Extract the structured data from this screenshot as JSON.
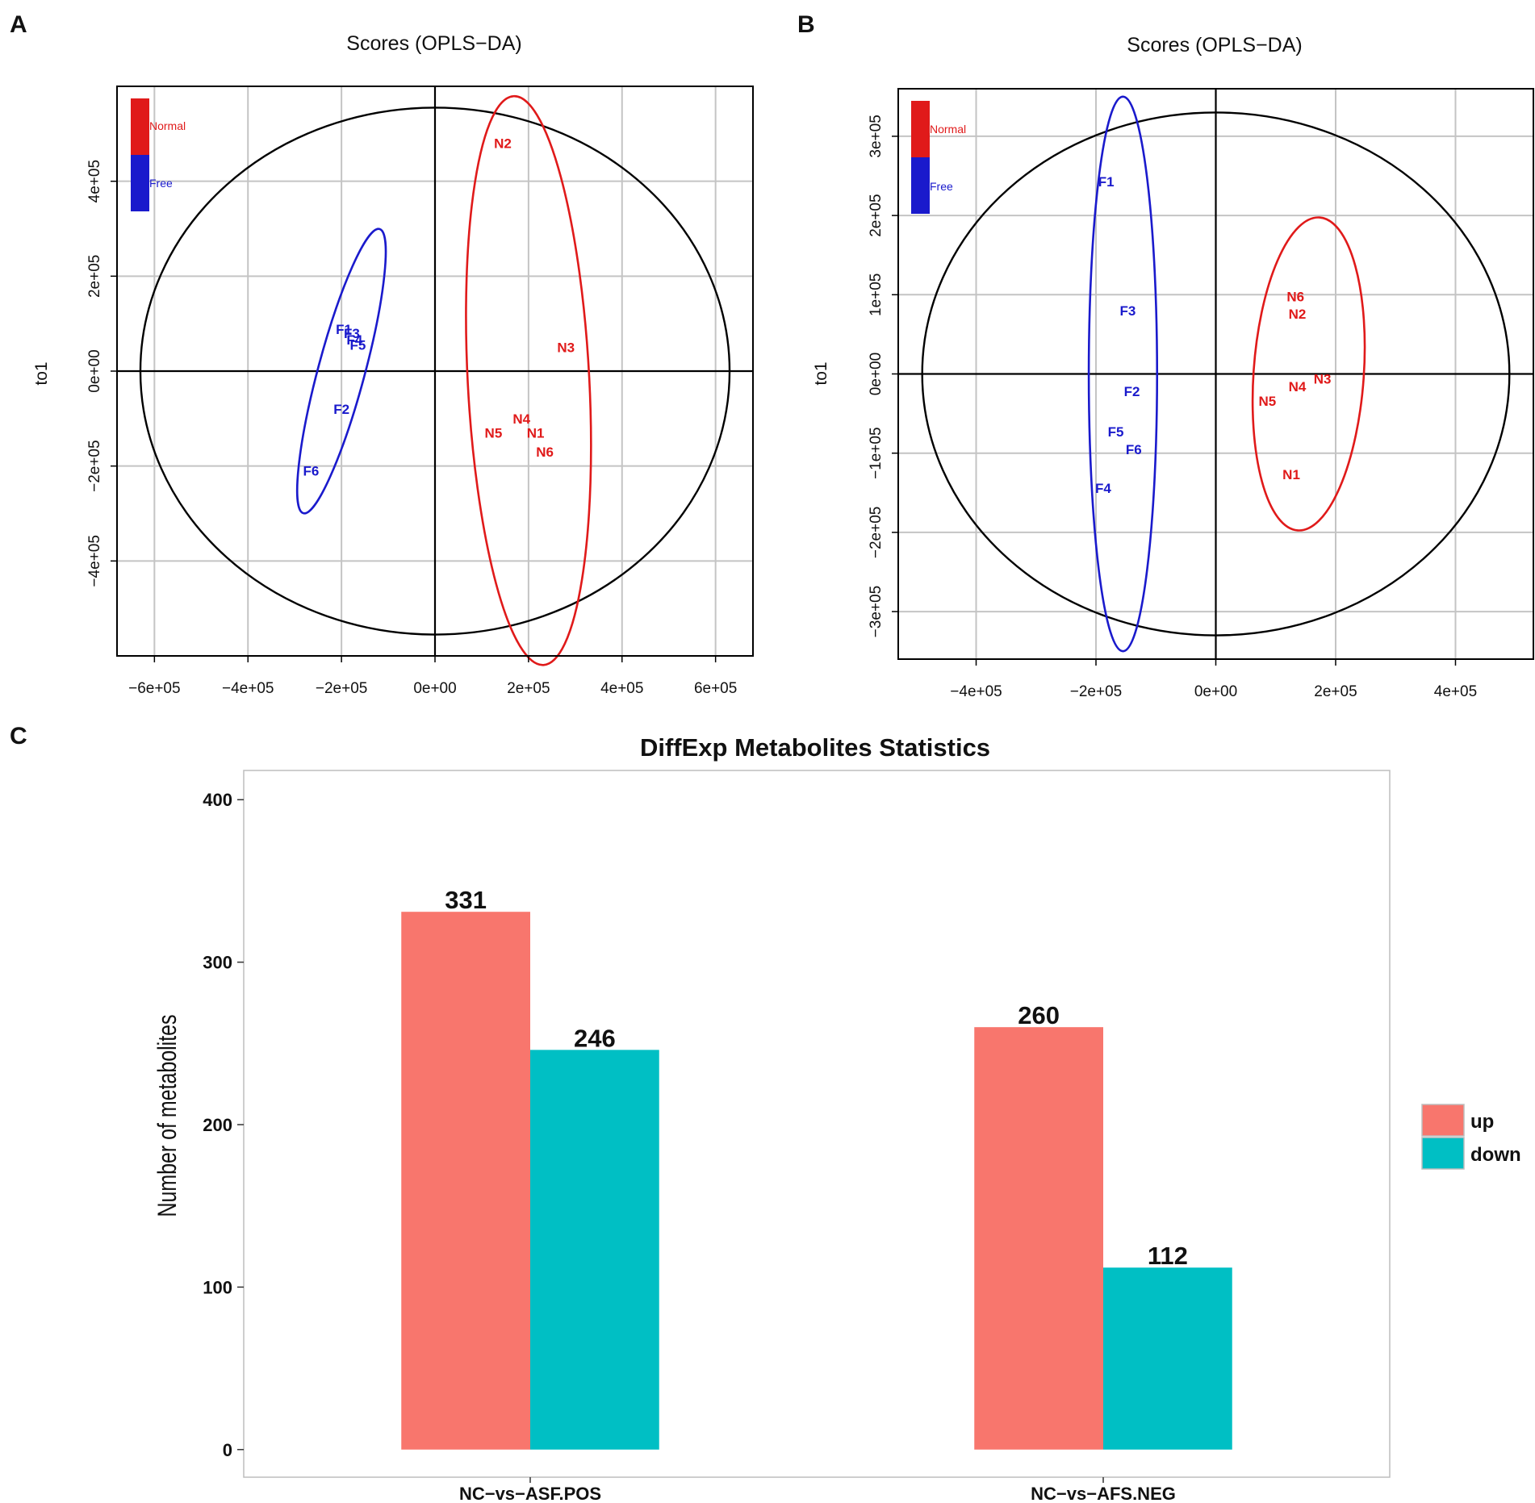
{
  "panels": [
    "A",
    "B",
    "C"
  ],
  "colors": {
    "normal": "#e01a1a",
    "free": "#1a1acc",
    "up": "#f8766d",
    "down": "#00bfc4"
  },
  "scores": [
    {
      "letter": "A",
      "title": "Scores (OPLS−DA)",
      "ylabel": "to1",
      "xlim": [
        -680000,
        680000
      ],
      "ylim": [
        -600000,
        600000
      ],
      "xticks": [
        -600000,
        -400000,
        -200000,
        0,
        200000,
        400000,
        600000
      ],
      "xtick_labels": [
        "−6e+05",
        "−4e+05",
        "−2e+05",
        "0e+00",
        "2e+05",
        "4e+05",
        "6e+05"
      ],
      "yticks": [
        -400000,
        -200000,
        0,
        200000,
        400000
      ],
      "ytick_labels": [
        "−4e+05",
        "−2e+05",
        "0e+00",
        "2e+05",
        "4e+05"
      ],
      "legend": [
        "Normal",
        "Free"
      ],
      "outer_ellipse": {
        "cx": 0,
        "cy": 0,
        "rx": 630000,
        "ry": 555000,
        "angle": 0
      },
      "group_ellipses": [
        {
          "group": "free",
          "cx": -200000,
          "cy": 0,
          "rx": 50000,
          "ry": 310000,
          "angle": 15
        },
        {
          "group": "normal",
          "cx": 200000,
          "cy": -20000,
          "rx": 130000,
          "ry": 600000,
          "angle": -3
        }
      ],
      "points": [
        {
          "label": "N2",
          "group": "normal",
          "x": 145000,
          "y": 480000
        },
        {
          "label": "N3",
          "group": "normal",
          "x": 280000,
          "y": 50000
        },
        {
          "label": "N4",
          "group": "normal",
          "x": 185000,
          "y": -100000
        },
        {
          "label": "N5",
          "group": "normal",
          "x": 125000,
          "y": -130000
        },
        {
          "label": "N1",
          "group": "normal",
          "x": 215000,
          "y": -130000
        },
        {
          "label": "N6",
          "group": "normal",
          "x": 235000,
          "y": -170000
        },
        {
          "label": "F1",
          "group": "free",
          "x": -195000,
          "y": 88000
        },
        {
          "label": "F3",
          "group": "free",
          "x": -178000,
          "y": 80000
        },
        {
          "label": "F4",
          "group": "free",
          "x": -172000,
          "y": 66000
        },
        {
          "label": "F5",
          "group": "free",
          "x": -165000,
          "y": 55000
        },
        {
          "label": "F2",
          "group": "free",
          "x": -200000,
          "y": -80000
        },
        {
          "label": "F6",
          "group": "free",
          "x": -265000,
          "y": -210000
        }
      ]
    },
    {
      "letter": "B",
      "title": "Scores (OPLS−DA)",
      "ylabel": "to1",
      "xlim": [
        -530000,
        530000
      ],
      "ylim": [
        -360000,
        360000
      ],
      "xticks": [
        -400000,
        -200000,
        0,
        200000,
        400000
      ],
      "xtick_labels": [
        "−4e+05",
        "−2e+05",
        "0e+00",
        "2e+05",
        "4e+05"
      ],
      "yticks": [
        -300000,
        -200000,
        -100000,
        0,
        100000,
        200000,
        300000
      ],
      "ytick_labels": [
        "−3e+05",
        "−2e+05",
        "−1e+05",
        "0e+00",
        "1e+05",
        "2e+05",
        "3e+05"
      ],
      "legend": [
        "Normal",
        "Free"
      ],
      "outer_ellipse": {
        "cx": 0,
        "cy": 0,
        "rx": 490000,
        "ry": 330000,
        "angle": 0
      },
      "group_ellipses": [
        {
          "group": "free",
          "cx": -155000,
          "cy": 0,
          "rx": 57000,
          "ry": 350000,
          "angle": 0
        },
        {
          "group": "normal",
          "cx": 155000,
          "cy": 0,
          "rx": 92000,
          "ry": 198000,
          "angle": 4
        }
      ],
      "points": [
        {
          "label": "F1",
          "group": "free",
          "x": -183000,
          "y": 243000
        },
        {
          "label": "F3",
          "group": "free",
          "x": -147000,
          "y": 80000
        },
        {
          "label": "F2",
          "group": "free",
          "x": -140000,
          "y": -22000
        },
        {
          "label": "F5",
          "group": "free",
          "x": -167000,
          "y": -73000
        },
        {
          "label": "F6",
          "group": "free",
          "x": -137000,
          "y": -95000
        },
        {
          "label": "F4",
          "group": "free",
          "x": -188000,
          "y": -144000
        },
        {
          "label": "N6",
          "group": "normal",
          "x": 133000,
          "y": 98000
        },
        {
          "label": "N2",
          "group": "normal",
          "x": 136000,
          "y": 76000
        },
        {
          "label": "N4",
          "group": "normal",
          "x": 136000,
          "y": -16000
        },
        {
          "label": "N3",
          "group": "normal",
          "x": 178000,
          "y": -6000
        },
        {
          "label": "N5",
          "group": "normal",
          "x": 86000,
          "y": -34000
        },
        {
          "label": "N1",
          "group": "normal",
          "x": 126000,
          "y": -127000
        }
      ]
    }
  ],
  "chart_data": {
    "type": "bar",
    "title": "DiffExp Metabolites Statistics",
    "xlabel": "",
    "ylabel": "Number of metabolites",
    "categories": [
      "NC−vs−ASF.POS",
      "NC−vs−AFS.NEG"
    ],
    "series": [
      {
        "name": "up",
        "values": [
          331,
          260
        ]
      },
      {
        "name": "down",
        "values": [
          246,
          112
        ]
      }
    ],
    "ylim": [
      -17,
      418
    ],
    "yticks": [
      0,
      100,
      200,
      300,
      400
    ],
    "legend_position": "right"
  }
}
